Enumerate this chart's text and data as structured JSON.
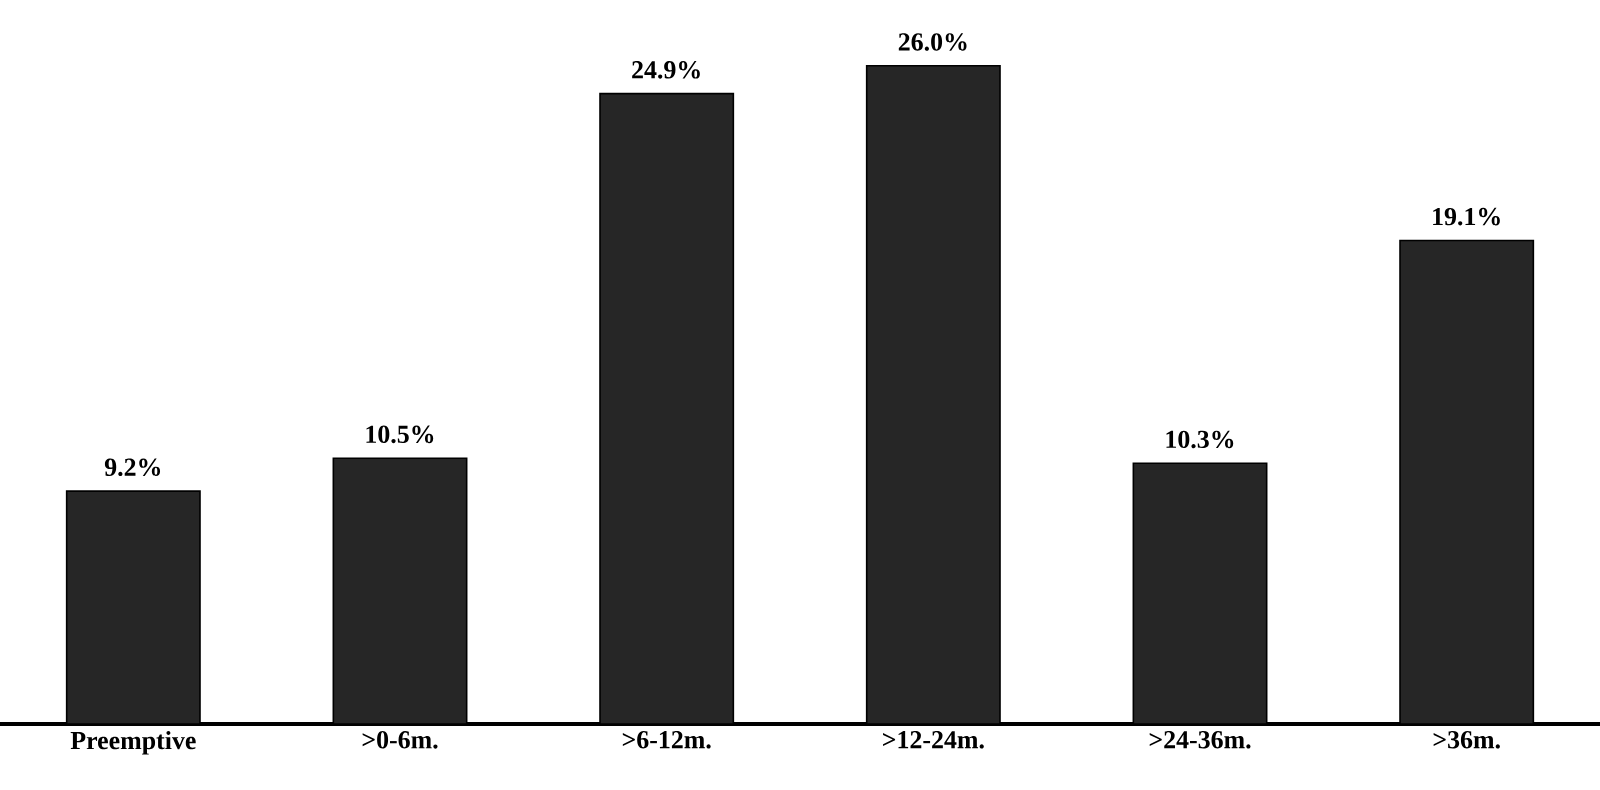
{
  "chart_data": {
    "type": "bar",
    "categories": [
      "Preemptive",
      ">0-6m.",
      ">6-12m.",
      ">12-24m.",
      ">24-36m.",
      ">36m."
    ],
    "values": [
      9.2,
      10.5,
      24.9,
      26.0,
      10.3,
      19.1
    ],
    "value_labels": [
      "9.2%",
      "10.5%",
      "24.9%",
      "26.0%",
      "10.3%",
      "19.1%"
    ],
    "color": "#262626"
  }
}
